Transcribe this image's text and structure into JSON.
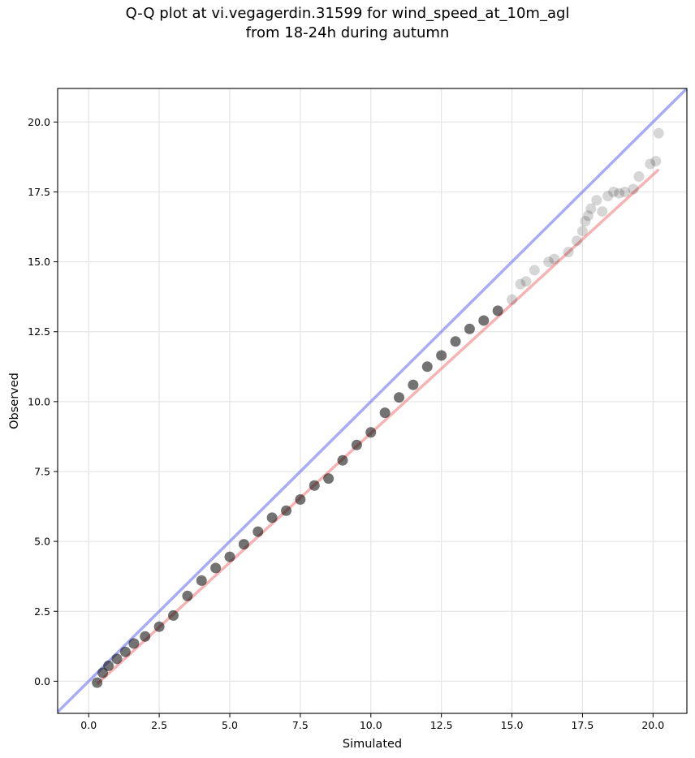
{
  "chart_data": {
    "type": "scatter",
    "title": "Q-Q plot at vi.vegagerdin.31599 for wind_speed_at_10m_agl",
    "subtitle": "from 18-24h during autumn",
    "xlabel": "Simulated",
    "ylabel": "Observed",
    "xlim": [
      -1.1,
      21.2
    ],
    "ylim": [
      -1.15,
      21.2
    ],
    "x_ticks": [
      0.0,
      2.5,
      5.0,
      7.5,
      10.0,
      12.5,
      15.0,
      17.5,
      20.0
    ],
    "x_tick_labels": [
      "0.0",
      "2.5",
      "5.0",
      "7.5",
      "10.0",
      "12.5",
      "15.0",
      "17.5",
      "20.0"
    ],
    "y_ticks": [
      0.0,
      2.5,
      5.0,
      7.5,
      10.0,
      12.5,
      15.0,
      17.5,
      20.0
    ],
    "y_tick_labels": [
      "0.0",
      "2.5",
      "5.0",
      "7.5",
      "10.0",
      "12.5",
      "15.0",
      "17.5",
      "20.0"
    ],
    "grid": true,
    "colors": {
      "points": "#000000",
      "reference_line": "#7b7ff0",
      "fit_line": "#f08080",
      "grid": "#e6e6e6"
    },
    "reference_line": {
      "x": [
        -1.1,
        21.2
      ],
      "y": [
        -1.1,
        21.2
      ]
    },
    "fit_line": {
      "x": [
        0.3,
        20.2
      ],
      "y": [
        -0.1,
        18.3
      ]
    },
    "quantiles": {
      "x": [
        0.3,
        0.5,
        0.7,
        1.0,
        1.3,
        1.6,
        2.0,
        2.5,
        3.0,
        3.5,
        4.0,
        4.5,
        5.0,
        5.5,
        6.0,
        6.5,
        7.0,
        7.5,
        8.0,
        8.5,
        9.0,
        9.5,
        10.0,
        10.5,
        11.0,
        11.5,
        12.0,
        12.5,
        13.0,
        13.5,
        14.0,
        14.5,
        15.0,
        15.3,
        15.5,
        15.8,
        16.3,
        16.5,
        17.0,
        17.3,
        17.5,
        17.6,
        17.7,
        17.8,
        18.0,
        18.2,
        18.4,
        18.6,
        18.8,
        19.0,
        19.3,
        19.5,
        19.9,
        20.1,
        20.2
      ],
      "y": [
        -0.05,
        0.3,
        0.55,
        0.8,
        1.05,
        1.35,
        1.6,
        1.95,
        2.35,
        3.05,
        3.6,
        4.05,
        4.45,
        4.9,
        5.35,
        5.85,
        6.1,
        6.5,
        7.0,
        7.25,
        7.9,
        8.45,
        8.9,
        9.6,
        10.15,
        10.6,
        11.25,
        11.65,
        12.15,
        12.6,
        12.9,
        13.25,
        13.65,
        14.2,
        14.3,
        14.7,
        15.0,
        15.1,
        15.35,
        15.75,
        16.1,
        16.45,
        16.65,
        16.9,
        17.2,
        16.8,
        17.35,
        17.5,
        17.45,
        17.5,
        17.6,
        18.05,
        18.5,
        18.6,
        19.6
      ]
    }
  }
}
